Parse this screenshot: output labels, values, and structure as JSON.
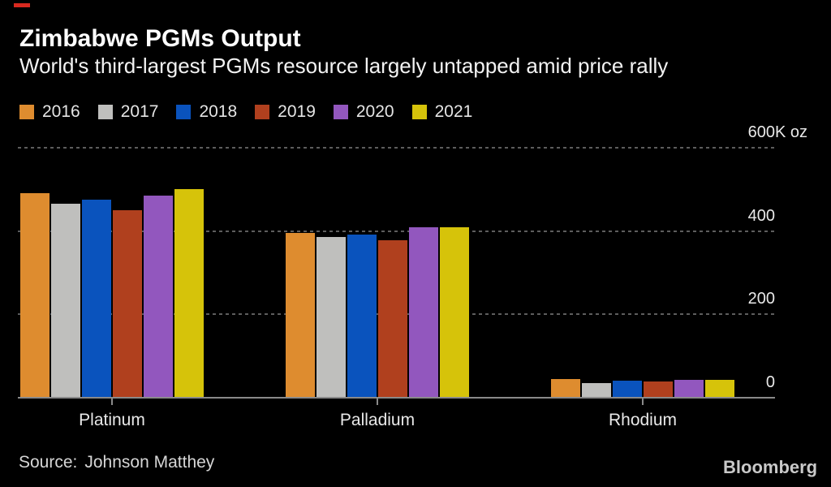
{
  "header": {
    "title": "Zimbabwe PGMs Output",
    "subtitle": "World's third-largest PGMs resource largely untapped amid price rally",
    "accent_color": "#d8291f"
  },
  "chart_data": {
    "type": "bar",
    "title": "Zimbabwe PGMs Output",
    "subtitle": "World's third-largest PGMs resource largely untapped amid price rally",
    "unit": "K oz",
    "categories": [
      "Platinum",
      "Palladium",
      "Rhodium"
    ],
    "series": [
      {
        "name": "2016",
        "color": "#de8c2f",
        "values": [
          490,
          395,
          45
        ]
      },
      {
        "name": "2017",
        "color": "#bfbfbd",
        "values": [
          465,
          386,
          36
        ]
      },
      {
        "name": "2018",
        "color": "#0a53bd",
        "values": [
          475,
          391,
          40
        ]
      },
      {
        "name": "2019",
        "color": "#b0401e",
        "values": [
          450,
          378,
          38
        ]
      },
      {
        "name": "2020",
        "color": "#9257be",
        "values": [
          485,
          410,
          42
        ]
      },
      {
        "name": "2021",
        "color": "#d6c30a",
        "values": [
          500,
          409,
          42
        ]
      }
    ],
    "ylim": [
      0,
      600
    ],
    "yticks": [
      {
        "value": 600,
        "label": "600",
        "suffix": "K oz"
      },
      {
        "value": 400,
        "label": "400"
      },
      {
        "value": 200,
        "label": "200"
      },
      {
        "value": 0,
        "label": "0"
      }
    ],
    "grid": "horizontal-dashed",
    "legend_position": "top-left",
    "source": "Johnson Matthey"
  },
  "footer": {
    "source_label": "Source:",
    "source_value": "Johnson Matthey",
    "brand": "Bloomberg"
  }
}
